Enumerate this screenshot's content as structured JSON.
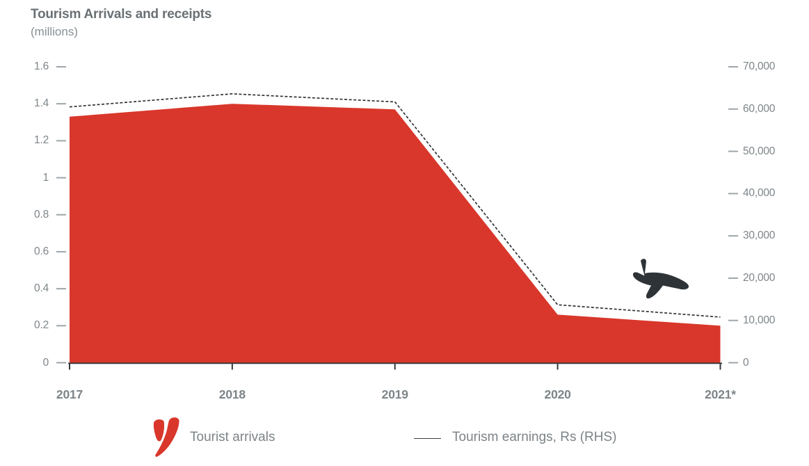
{
  "header": {
    "title": "Tourism Arrivals and receipts",
    "subtitle": "(millions)"
  },
  "chart_data": {
    "type": "area+line",
    "title": "Tourism Arrivals and receipts",
    "subtitle": "(millions)",
    "categories": [
      "2017",
      "2018",
      "2019",
      "2020",
      "2021*"
    ],
    "series": [
      {
        "name": "Tourist arrivals",
        "type": "area",
        "axis": "left",
        "color": "#d9372b",
        "values": [
          1.33,
          1.4,
          1.37,
          0.26,
          0.2
        ]
      },
      {
        "name": "Tourism earnings, Rs (RHS)",
        "type": "line",
        "axis": "right",
        "color": "#2e3338",
        "dashed": true,
        "values": [
          60500,
          63600,
          61700,
          13700,
          10800
        ]
      }
    ],
    "left_axis": {
      "min": 0,
      "max": 1.6,
      "tick_labels": [
        "1.6",
        "1.4",
        "1.2",
        "1",
        "0.8",
        "0.6",
        "0.4",
        "0.2",
        "0"
      ]
    },
    "right_axis": {
      "min": 0,
      "max": 70000,
      "tick_labels": [
        "70,000",
        "60,000",
        "50,000",
        "40,000",
        "30,000",
        "20,000",
        "10,000",
        "0"
      ]
    },
    "legend": {
      "items": [
        {
          "label": "Tourist arrivals",
          "marker": "red-v-logo"
        },
        {
          "label": "Tourism earnings, Rs (RHS)",
          "marker": "thin-line"
        }
      ]
    },
    "annotations": [
      {
        "type": "airplane-icon",
        "note": "dark descending jet silhouette between 2020 and 2021"
      }
    ],
    "grid": false,
    "legend_position": "bottom"
  },
  "colors": {
    "area_red": "#d9372b",
    "line_dark": "#2e3338",
    "axis_dark": "#34393d",
    "tick_gray": "#9fa5a8",
    "label_gray": "#7e8589",
    "title_gray": "#6a7074"
  }
}
